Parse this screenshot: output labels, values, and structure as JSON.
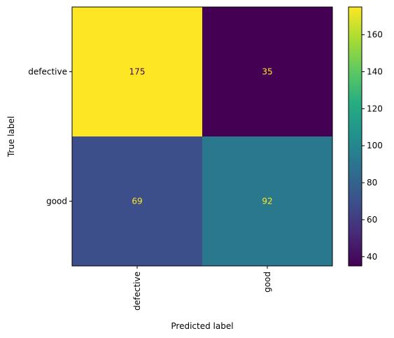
{
  "chart_data": {
    "type": "heatmap",
    "title": "",
    "xlabel": "Predicted label",
    "ylabel": "True label",
    "x_categories": [
      "defective",
      "good"
    ],
    "y_categories": [
      "defective",
      "good"
    ],
    "matrix": [
      [
        175,
        35
      ],
      [
        69,
        92
      ]
    ],
    "colormap": "viridis",
    "color_range": [
      35,
      175
    ],
    "colorbar_ticks": [
      40,
      60,
      80,
      100,
      120,
      140,
      160
    ],
    "text_color_light": "#fde725",
    "text_color_dark": "#440154",
    "grid": false
  }
}
